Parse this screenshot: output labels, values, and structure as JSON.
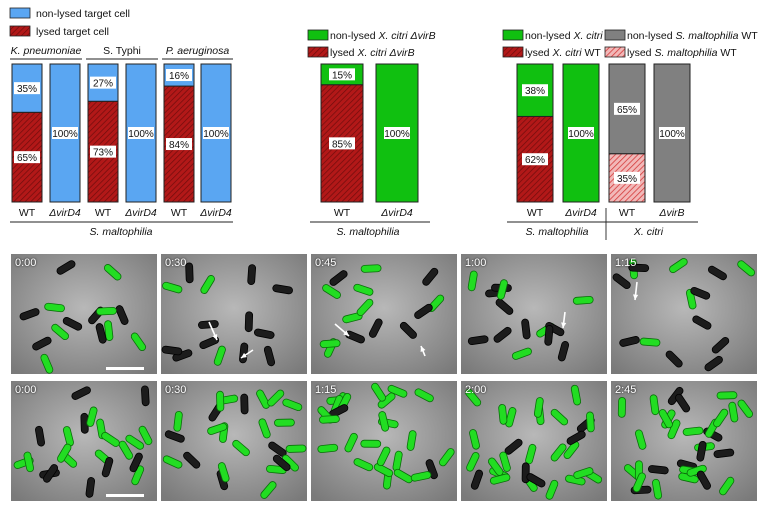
{
  "legends": {
    "panel_a": [
      {
        "label": "non-lysed target cell",
        "color": "#5aa6f2",
        "hatch": false
      },
      {
        "label": "lysed target cell",
        "color": "#b21818",
        "hatch": true
      }
    ],
    "panel_b": [
      {
        "label_prefix": "non-lysed ",
        "label_italic": "X. citri ΔvirB",
        "color": "#10c010",
        "hatch": false
      },
      {
        "label_prefix": "lysed ",
        "label_italic": "X. citri ΔvirB",
        "color": "#b21818",
        "hatch": true
      }
    ],
    "panel_c": [
      {
        "label_prefix": "non-lysed ",
        "label_italic": "X. citri",
        "label_suffix": " WT",
        "color": "#10c010",
        "hatch": false
      },
      {
        "label_prefix": "lysed ",
        "label_italic": "X. citri",
        "label_suffix": " WT",
        "color": "#b21818",
        "hatch": true
      },
      {
        "label_prefix": "non-lysed ",
        "label_italic": "S. maltophilia",
        "label_suffix": " WT",
        "color": "#808080",
        "hatch": false
      },
      {
        "label_prefix": "lysed ",
        "label_italic": "S. maltophilia",
        "label_suffix": " WT",
        "color": "#e06060",
        "hatch": true
      }
    ]
  },
  "chart_data": [
    {
      "type": "bar",
      "stacked": true,
      "target_groups": [
        "K. pneumoniae",
        "S. Typhi",
        "P. aeruginosa"
      ],
      "categories": [
        "WT",
        "ΔvirD4",
        "WT",
        "ΔvirD4",
        "WT",
        "ΔvirD4"
      ],
      "series": [
        {
          "name": "lysed target cell",
          "values": [
            65,
            0,
            73,
            0,
            84,
            0
          ]
        },
        {
          "name": "non-lysed target cell",
          "values": [
            35,
            100,
            27,
            100,
            16,
            100
          ]
        }
      ],
      "group_label": "S. maltophilia",
      "ylim": [
        0,
        100
      ]
    },
    {
      "type": "bar",
      "stacked": true,
      "categories": [
        "WT",
        "ΔvirD4"
      ],
      "series": [
        {
          "name": "lysed X. citri ΔvirB",
          "values": [
            85,
            0
          ]
        },
        {
          "name": "non-lysed X. citri ΔvirB",
          "values": [
            15,
            100
          ]
        }
      ],
      "group_label": "S. maltophilia",
      "ylim": [
        0,
        100
      ]
    },
    {
      "type": "bar",
      "stacked": true,
      "categories": [
        "WT",
        "ΔvirD4",
        "WT",
        "ΔvirB"
      ],
      "groups": [
        {
          "label": "S. maltophilia",
          "bars": [
            0,
            1
          ]
        },
        {
          "label": "X. citri",
          "bars": [
            2,
            3
          ]
        }
      ],
      "series": [
        {
          "name": "lysed X. citri WT",
          "values": [
            62,
            0,
            null,
            null
          ]
        },
        {
          "name": "non-lysed X. citri WT",
          "values": [
            38,
            100,
            null,
            null
          ]
        },
        {
          "name": "lysed S. maltophilia WT",
          "values": [
            null,
            null,
            35,
            0
          ]
        },
        {
          "name": "non-lysed S. maltophilia WT",
          "values": [
            null,
            null,
            65,
            100
          ]
        }
      ],
      "ylim": [
        0,
        100
      ]
    }
  ],
  "timelapse": {
    "row1": [
      "0:00",
      "0:30",
      "0:45",
      "1:00",
      "1:15"
    ],
    "row2": [
      "0:00",
      "0:30",
      "1:15",
      "2:00",
      "2:45"
    ]
  }
}
